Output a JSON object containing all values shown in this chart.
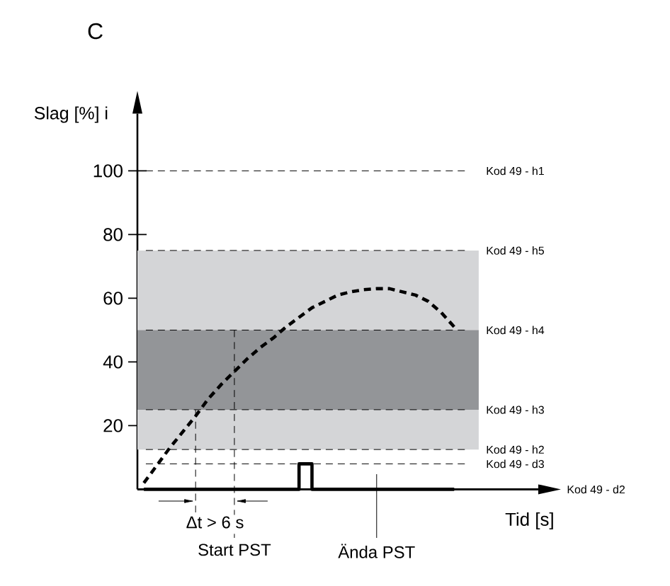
{
  "chart_data": {
    "type": "line",
    "title": "C",
    "ylabel": "Slag [%] i",
    "xlabel": "Tid [s]",
    "categories": [
      null,
      null,
      null,
      null,
      null,
      null,
      null,
      null,
      null,
      null,
      null,
      null,
      null,
      null,
      null,
      null,
      null,
      null,
      null,
      null,
      null,
      null,
      null,
      null,
      null,
      null,
      null,
      null,
      null,
      null,
      null
    ],
    "series": [
      {
        "color": "#000000",
        "line_style": "dashed",
        "values": [
          2,
          7.5,
          13,
          18,
          23,
          28.5,
          33,
          37,
          41,
          44.5,
          47.5,
          51,
          54,
          57,
          59,
          61,
          62,
          62.7,
          63,
          63,
          62,
          61,
          59,
          55.5,
          51,
          null,
          null,
          null,
          null,
          null,
          null
        ]
      },
      {
        "type": "step",
        "color": "#000000",
        "line_style": "solid",
        "values": [
          0,
          0,
          0,
          0,
          0,
          0,
          0,
          0,
          0,
          0,
          0,
          0,
          8,
          0,
          0,
          0,
          0,
          0,
          0,
          0,
          0,
          0,
          0,
          0,
          0,
          null,
          null,
          null,
          null,
          null,
          null
        ]
      }
    ],
    "ylim": [
      0,
      118
    ],
    "yticks": [
      20,
      40,
      60,
      80,
      100
    ],
    "tick_labels": "y",
    "bands": [
      {
        "axis": "y",
        "from": 12.5,
        "to": 75,
        "color": "#d4d5d7"
      },
      {
        "axis": "y",
        "from": 25,
        "to": 50,
        "color": "#939598"
      }
    ],
    "ref_lines": [
      {
        "axis": "y",
        "value": 100,
        "label": "Kod 49 - h1",
        "line_style": "dashed"
      },
      {
        "axis": "y",
        "value": 75,
        "label": "Kod 49 - h5",
        "line_style": "dashed"
      },
      {
        "axis": "y",
        "value": 50,
        "label": "Kod 49 - h4",
        "line_style": "dashed"
      },
      {
        "axis": "y",
        "value": 25,
        "label": "Kod 49 - h3",
        "line_style": "dashed"
      },
      {
        "axis": "y",
        "value": 12.5,
        "label": "Kod 49 - h2",
        "line_style": "dashed"
      },
      {
        "axis": "y",
        "value": 8,
        "label": "Kod 49 - d3",
        "line_style": "dashed"
      },
      {
        "axis": "y",
        "value": 0,
        "label": "Kod 49 - d2",
        "line_style": "solid"
      }
    ],
    "annotations": [
      "Δt > 6 s",
      "Start PST",
      "Ända PST"
    ]
  }
}
